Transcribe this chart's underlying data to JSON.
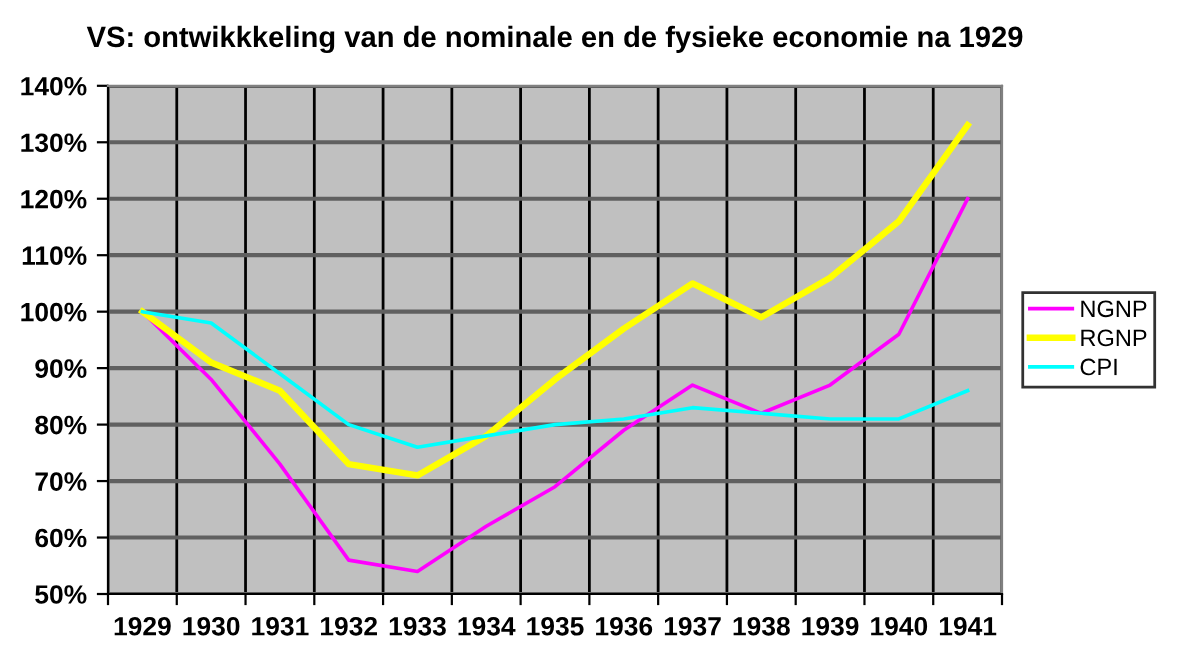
{
  "chart_data": {
    "type": "line",
    "title": "VS: ontwikkkeling van de nominale en de fysieke economie na 1929",
    "categories": [
      "1929",
      "1930",
      "1931",
      "1932",
      "1933",
      "1934",
      "1935",
      "1936",
      "1937",
      "1938",
      "1939",
      "1940",
      "1941"
    ],
    "series": [
      {
        "name": "NGNP",
        "color": "#ff00ff",
        "values": [
          100,
          88,
          73,
          56,
          54,
          62,
          69,
          79,
          87,
          82,
          87,
          96,
          120
        ]
      },
      {
        "name": "RGNP",
        "color": "#ffff00",
        "values": [
          100,
          91,
          86,
          73,
          71,
          78,
          88,
          97,
          105,
          99,
          106,
          116,
          133
        ]
      },
      {
        "name": "CPI",
        "color": "#00ffff",
        "values": [
          100,
          98,
          89,
          80,
          76,
          78,
          80,
          81,
          83,
          82,
          81,
          81,
          86
        ]
      }
    ],
    "ylim": [
      50,
      140
    ],
    "yticks": [
      {
        "value": 50,
        "label": "50%"
      },
      {
        "value": 60,
        "label": "60%"
      },
      {
        "value": 70,
        "label": "70%"
      },
      {
        "value": 80,
        "label": "80%"
      },
      {
        "value": 90,
        "label": "90%"
      },
      {
        "value": 100,
        "label": "100%"
      },
      {
        "value": 110,
        "label": "110%"
      },
      {
        "value": 120,
        "label": "120%"
      },
      {
        "value": 130,
        "label": "130%"
      },
      {
        "value": 140,
        "label": "140%"
      }
    ],
    "grid": true,
    "legend": "right",
    "marker": "none",
    "line_style": "solid"
  }
}
